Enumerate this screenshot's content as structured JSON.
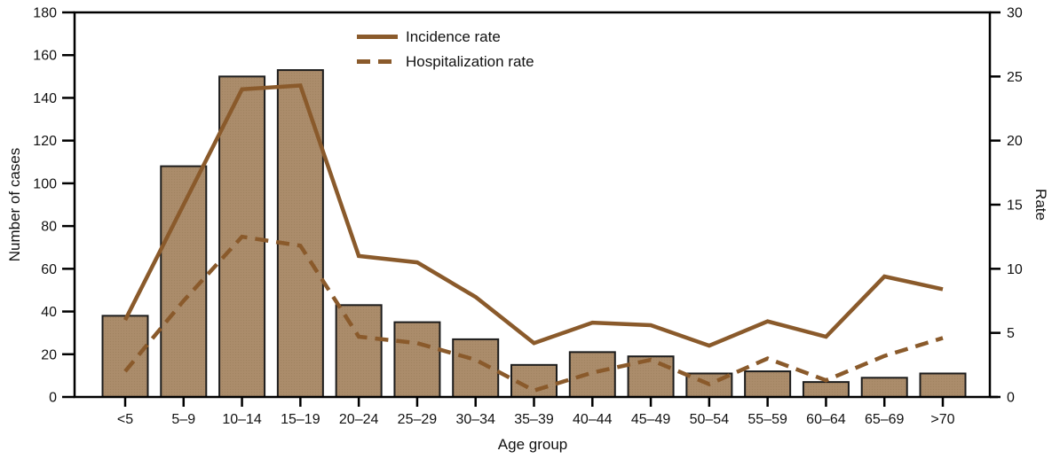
{
  "figure": {
    "axes": {
      "left_title": "Number of cases",
      "right_title": "Rate",
      "x_title": "Age group"
    },
    "legend": {
      "incidence_label": "Incidence rate",
      "hospitalization_label": "Hospitalization rate"
    }
  },
  "chart_data": {
    "type": "combo-bar-line",
    "title": "",
    "categories": [
      "<5",
      "5–9",
      "10–14",
      "15–19",
      "20–24",
      "25–29",
      "30–34",
      "35–39",
      "40–44",
      "45–49",
      "50–54",
      "55–59",
      "60–64",
      "65–69",
      ">70"
    ],
    "bar_series": {
      "name": "Number of cases",
      "axis": "left",
      "values": [
        38,
        108,
        150,
        153,
        43,
        35,
        27,
        15,
        21,
        19,
        11,
        12,
        7,
        9,
        11
      ]
    },
    "line_series": [
      {
        "name": "Incidence rate",
        "axis": "right",
        "style": "solid",
        "values": [
          6,
          15,
          24,
          24.3,
          11,
          10.5,
          7.8,
          4.2,
          5.8,
          5.6,
          4,
          5.9,
          4.7,
          9.4,
          8.4
        ]
      },
      {
        "name": "Hospitalization rate",
        "axis": "right",
        "style": "dashed",
        "values": [
          2,
          7.5,
          12.5,
          11.8,
          4.7,
          4.2,
          2.9,
          0.5,
          1.9,
          2.9,
          1,
          3,
          1.3,
          3.2,
          4.6
        ]
      }
    ],
    "left_axis": {
      "label": "Number of cases",
      "min": 0,
      "max": 180,
      "ticks": [
        0,
        20,
        40,
        60,
        80,
        100,
        120,
        140,
        160,
        180
      ]
    },
    "right_axis": {
      "label": "Rate",
      "min": 0,
      "max": 30,
      "ticks": [
        0,
        5,
        10,
        15,
        20,
        25,
        30
      ]
    },
    "x_axis": {
      "label": "Age group"
    },
    "legend_position": "top-center",
    "grid": false,
    "colors": {
      "line": "#8a5a2b",
      "bar_fill": "#ab8c6b",
      "bar_dot": "#997a59",
      "bar_border": "#1c1c1c",
      "axis": "#000000",
      "text": "#111111"
    }
  }
}
